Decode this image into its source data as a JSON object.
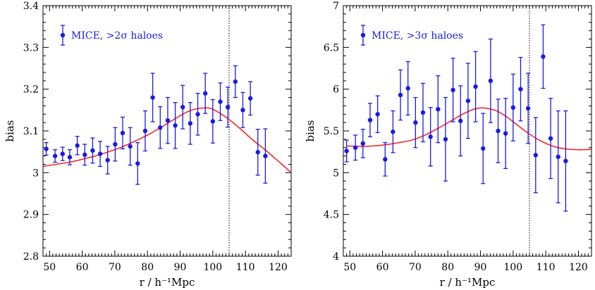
{
  "colors": {
    "points": "#1a1ae6",
    "model": "#ff1a1a",
    "axes": "#000000",
    "vline": "#000000"
  },
  "chart_data": [
    {
      "type": "scatter",
      "xlabel": "r / h⁻¹Mpc",
      "ylabel": "bias",
      "xlim": [
        48,
        124
      ],
      "ylim": [
        2.8,
        3.4
      ],
      "xticks": [
        50,
        60,
        70,
        80,
        90,
        100,
        110,
        120
      ],
      "yticks": [
        2.8,
        2.9,
        3,
        3.1,
        3.2,
        3.3,
        3.4
      ],
      "ytick_labels": [
        "2.8",
        "2.9",
        "3",
        "3.1",
        "3.2",
        "3.3",
        "3.4"
      ],
      "legend": {
        "label": "MICE, >2σ haloes",
        "location": "top-left"
      },
      "vline": 105,
      "series": [
        {
          "name": "MICE, >2σ haloes",
          "kind": "points-with-errorbars",
          "x": [
            49,
            51.7,
            54,
            56.2,
            58.5,
            60.8,
            63.2,
            65.5,
            67.8,
            70.1,
            72.4,
            74.7,
            77,
            79.3,
            81.6,
            83.9,
            86.2,
            88.5,
            90.8,
            93.1,
            95.4,
            97.7,
            100,
            102.3,
            104.6,
            106.9,
            109.2,
            111.5,
            113.8,
            116.1
          ],
          "y": [
            3.057,
            3.04,
            3.045,
            3.037,
            3.065,
            3.043,
            3.053,
            3.045,
            3.03,
            3.068,
            3.095,
            3.063,
            3.022,
            3.1,
            3.18,
            3.108,
            3.125,
            3.113,
            3.157,
            3.118,
            3.14,
            3.19,
            3.123,
            3.17,
            3.157,
            3.218,
            3.15,
            3.178,
            3.049,
            3.04
          ],
          "yerr": [
            0.015,
            0.015,
            0.016,
            0.018,
            0.022,
            0.025,
            0.03,
            0.03,
            0.033,
            0.04,
            0.038,
            0.045,
            0.05,
            0.048,
            0.058,
            0.05,
            0.055,
            0.055,
            0.052,
            0.05,
            0.05,
            0.048,
            0.052,
            0.045,
            0.048,
            0.038,
            0.042,
            0.04,
            0.055,
            0.065
          ]
        },
        {
          "name": "",
          "kind": "model-curve",
          "x": [
            48,
            52,
            56,
            60,
            64,
            68,
            72,
            76,
            80,
            84,
            88,
            92,
            95,
            98,
            100,
            104,
            108,
            112,
            116,
            120,
            124
          ],
          "y": [
            3.015,
            3.02,
            3.025,
            3.032,
            3.04,
            3.05,
            3.061,
            3.075,
            3.09,
            3.108,
            3.127,
            3.145,
            3.153,
            3.155,
            3.152,
            3.133,
            3.108,
            3.08,
            3.055,
            3.028,
            3.0
          ]
        }
      ]
    },
    {
      "type": "scatter",
      "xlabel": "r / h⁻¹Mpc",
      "ylabel": "bias",
      "xlim": [
        48,
        124
      ],
      "ylim": [
        4,
        7
      ],
      "xticks": [
        50,
        60,
        70,
        80,
        90,
        100,
        110,
        120
      ],
      "yticks": [
        4,
        4.5,
        5,
        5.5,
        6,
        6.5,
        7
      ],
      "ytick_labels": [
        "4",
        "4.5",
        "5",
        "5.5",
        "6",
        "6.5",
        "7"
      ],
      "legend": {
        "label": "MICE, >3σ haloes",
        "location": "top-left"
      },
      "vline": 105,
      "series": [
        {
          "name": "MICE, >3σ haloes",
          "kind": "points-with-errorbars",
          "x": [
            49,
            51.7,
            54,
            56.2,
            58.5,
            60.8,
            63.2,
            65.5,
            67.8,
            70.1,
            72.4,
            74.7,
            77,
            79.3,
            81.6,
            83.9,
            86.2,
            88.5,
            90.8,
            93.1,
            95.4,
            97.7,
            100,
            102.3,
            104.6,
            106.9,
            109.2,
            111.5,
            113.8,
            116.1
          ],
          "y": [
            5.26,
            5.3,
            5.35,
            5.63,
            5.7,
            5.16,
            5.49,
            5.93,
            6.01,
            5.6,
            5.72,
            5.43,
            5.76,
            5.4,
            5.99,
            5.62,
            5.86,
            6.03,
            5.29,
            6.1,
            5.5,
            5.47,
            5.78,
            6.0,
            5.77,
            5.21,
            6.39,
            5.41,
            5.19,
            5.14
          ],
          "yerr": [
            0.13,
            0.15,
            0.17,
            0.2,
            0.22,
            0.2,
            0.25,
            0.3,
            0.32,
            0.3,
            0.35,
            0.35,
            0.4,
            0.5,
            0.38,
            0.42,
            0.45,
            0.42,
            0.42,
            0.5,
            0.38,
            0.42,
            0.4,
            0.38,
            0.42,
            0.45,
            0.38,
            0.48,
            0.55,
            0.6
          ]
        },
        {
          "name": "",
          "kind": "model-curve",
          "x": [
            49,
            53,
            57,
            61,
            65,
            69,
            73,
            77,
            81,
            85,
            88,
            90,
            92,
            95,
            98,
            101,
            104,
            108,
            112,
            116,
            120,
            124
          ],
          "y": [
            5.32,
            5.315,
            5.32,
            5.335,
            5.36,
            5.39,
            5.45,
            5.53,
            5.62,
            5.71,
            5.76,
            5.775,
            5.77,
            5.74,
            5.67,
            5.58,
            5.49,
            5.39,
            5.32,
            5.285,
            5.275,
            5.28
          ]
        }
      ]
    }
  ]
}
